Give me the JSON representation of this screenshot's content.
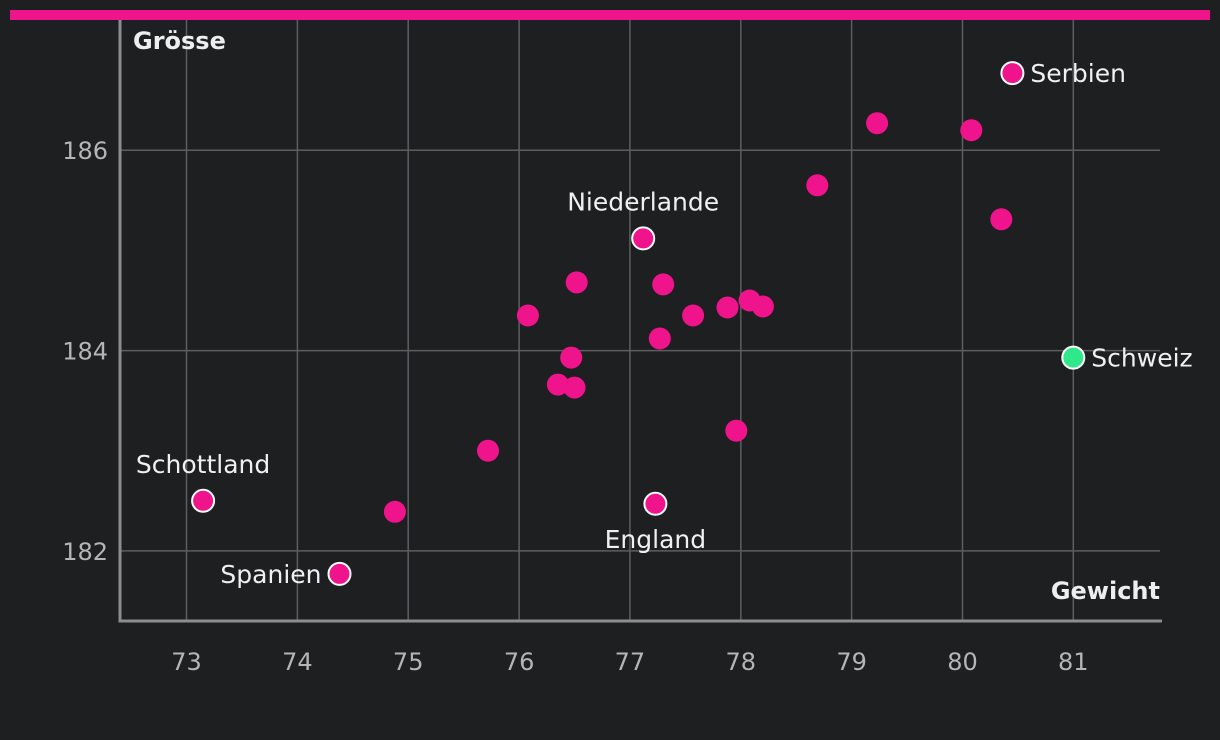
{
  "colors": {
    "background": "#1e1f21",
    "accent": "#f0148c",
    "highlight": "#2ee88a",
    "grid": "#5d5e60",
    "axis": "#8c8d8f"
  },
  "chart_data": {
    "type": "scatter",
    "xlabel": "Gewicht",
    "ylabel": "Grösse",
    "xlim": [
      72.4,
      81.8
    ],
    "ylim": [
      181.3,
      187.3
    ],
    "xticks": [
      73,
      74,
      75,
      76,
      77,
      78,
      79,
      80,
      81
    ],
    "yticks": [
      182,
      184,
      186
    ],
    "grid": true,
    "points": [
      {
        "x": 80.45,
        "y": 186.77,
        "label": "Serbien",
        "highlight": "outlined"
      },
      {
        "x": 79.23,
        "y": 186.27
      },
      {
        "x": 80.08,
        "y": 186.2
      },
      {
        "x": 78.69,
        "y": 185.65
      },
      {
        "x": 80.35,
        "y": 185.31
      },
      {
        "x": 77.12,
        "y": 185.12,
        "label": "Niederlande",
        "highlight": "outlined"
      },
      {
        "x": 76.52,
        "y": 184.68
      },
      {
        "x": 77.3,
        "y": 184.66
      },
      {
        "x": 76.08,
        "y": 184.35
      },
      {
        "x": 77.57,
        "y": 184.35
      },
      {
        "x": 77.88,
        "y": 184.43
      },
      {
        "x": 78.08,
        "y": 184.5
      },
      {
        "x": 78.2,
        "y": 184.44
      },
      {
        "x": 77.27,
        "y": 184.12
      },
      {
        "x": 76.47,
        "y": 183.93
      },
      {
        "x": 81.0,
        "y": 183.93,
        "label": "Schweiz",
        "highlight": "green"
      },
      {
        "x": 76.35,
        "y": 183.66
      },
      {
        "x": 76.5,
        "y": 183.63
      },
      {
        "x": 77.96,
        "y": 183.2
      },
      {
        "x": 75.72,
        "y": 183.0
      },
      {
        "x": 73.15,
        "y": 182.5,
        "label": "Schottland",
        "highlight": "outlined"
      },
      {
        "x": 74.88,
        "y": 182.39
      },
      {
        "x": 77.23,
        "y": 182.47,
        "label": "England",
        "highlight": "outlined"
      },
      {
        "x": 74.38,
        "y": 181.77,
        "label": "Spanien",
        "highlight": "outlined"
      }
    ]
  }
}
